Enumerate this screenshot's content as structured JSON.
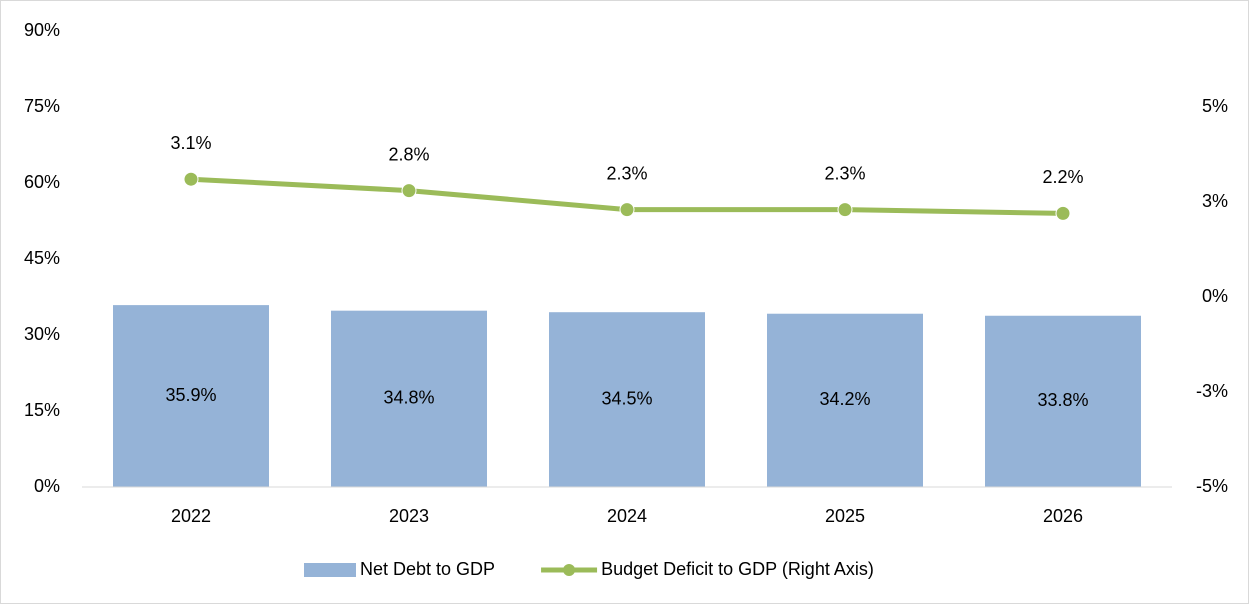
{
  "chart_data": {
    "type": "bar",
    "categories": [
      "2022",
      "2023",
      "2024",
      "2025",
      "2026"
    ],
    "ylim": [
      0,
      90
    ],
    "yticks": [
      {
        "value": 0,
        "label": "0%"
      },
      {
        "value": 15,
        "label": "15%"
      },
      {
        "value": 30,
        "label": "30%"
      },
      {
        "value": 45,
        "label": "45%"
      },
      {
        "value": 60,
        "label": "60%"
      },
      {
        "value": 75,
        "label": "75%"
      },
      {
        "value": 90,
        "label": "90%"
      }
    ],
    "y2lim": [
      -5,
      7
    ],
    "y2ticks": [
      {
        "value": -5,
        "label": "-5%"
      },
      {
        "value": -2.5,
        "label": "-3%"
      },
      {
        "value": 0,
        "label": "0%"
      },
      {
        "value": 2.5,
        "label": "3%"
      },
      {
        "value": 5,
        "label": "5%"
      }
    ],
    "legend": "bottom",
    "series": [
      {
        "name": "Net Debt to GDP",
        "type": "bar",
        "color": "#95b3d7",
        "values": [
          35.9,
          34.8,
          34.5,
          34.2,
          33.8
        ],
        "value_labels": [
          "35.9%",
          "34.8%",
          "34.5%",
          "34.2%",
          "33.8%"
        ]
      },
      {
        "name": "Budget Deficit to GDP (Right Axis)",
        "type": "line",
        "axis": "y2",
        "color": "#9bbb59",
        "values": [
          3.1,
          2.8,
          2.3,
          2.3,
          2.2
        ],
        "value_labels": [
          "3.1%",
          "2.8%",
          "2.3%",
          "2.3%",
          "2.2%"
        ]
      }
    ]
  }
}
